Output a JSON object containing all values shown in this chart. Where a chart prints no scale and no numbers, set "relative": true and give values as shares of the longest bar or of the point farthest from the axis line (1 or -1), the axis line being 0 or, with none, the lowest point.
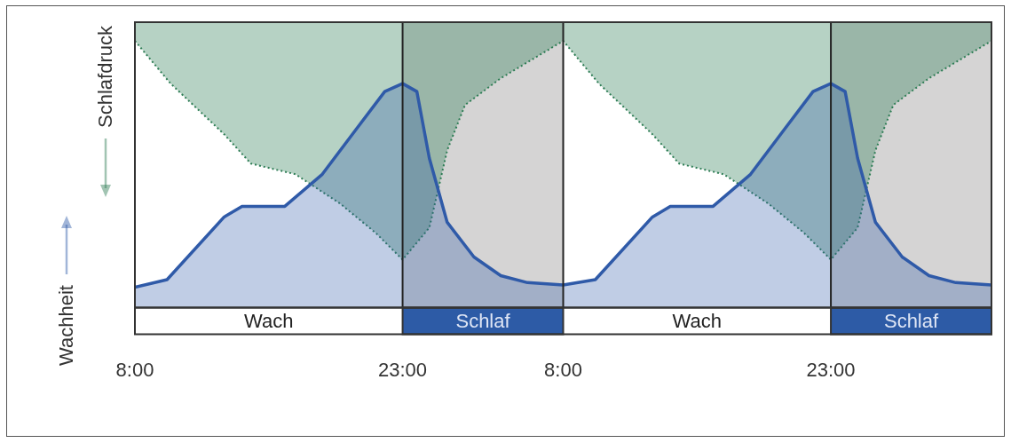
{
  "chart_data": {
    "type": "area",
    "relative": true,
    "legend": "left",
    "xlim": [
      "--01-01T08:00",
      "--01-03T08:00"
    ],
    "xticks": [
      {
        "value": "--01-01T08:00",
        "label": "8:00"
      },
      {
        "value": "--01-01T23:00",
        "label": "23:00"
      },
      {
        "value": "--01-02T08:00",
        "label": "8:00"
      },
      {
        "value": "--01-02T23:00",
        "label": "23:00"
      }
    ],
    "series": [
      {
        "name": "Wachheit",
        "color": "#2f5aa8",
        "line_style": "solid",
        "x": [
          "--01-01T08:00",
          "--01-01T09:48",
          "--01-01T13:00",
          "--01-01T14:00",
          "--01-01T16:24",
          "--01-01T18:30",
          "--01-01T20:18",
          "--01-01T22:00",
          "--01-01T23:00",
          "--01-01T23:48",
          "--01-02T00:30",
          "--01-02T01:30",
          "--01-02T03:00",
          "--01-02T04:30",
          "--01-02T06:00",
          "--01-02T08:00",
          "--01-02T09:48",
          "--01-02T13:00",
          "--01-02T14:00",
          "--01-02T16:24",
          "--01-02T18:30",
          "--01-02T20:18",
          "--01-02T22:00",
          "--01-02T23:00",
          "--01-02T23:48",
          "--01-03T00:30",
          "--01-03T01:30",
          "--01-03T03:00",
          "--01-03T04:30",
          "--01-03T06:00",
          "--01-03T08:00"
        ],
        "values": [
          0.077,
          0.105,
          0.34,
          0.38,
          0.38,
          0.5,
          0.66,
          0.81,
          0.84,
          0.81,
          0.56,
          0.32,
          0.19,
          0.12,
          0.094,
          0.085,
          0.105,
          0.34,
          0.38,
          0.38,
          0.5,
          0.66,
          0.81,
          0.84,
          0.81,
          0.56,
          0.32,
          0.19,
          0.12,
          0.094,
          0.085
        ]
      },
      {
        "name": "Schlafdruck",
        "color": "#2e7d55",
        "line_style": "dotted",
        "x": [
          "--01-01T08:00",
          "--01-01T10:00",
          "--01-01T13:00",
          "--01-01T14:30",
          "--01-01T17:00",
          "--01-01T19:30",
          "--01-01T21:30",
          "--01-01T23:00",
          "--01-02T00:30",
          "--01-02T01:30",
          "--01-02T02:30",
          "--01-02T04:30",
          "--01-02T08:00",
          "--01-02T10:00",
          "--01-02T13:00",
          "--01-02T14:30",
          "--01-02T17:00",
          "--01-02T19:30",
          "--01-02T21:30",
          "--01-02T23:00",
          "--01-03T00:30",
          "--01-03T01:30",
          "--01-03T02:30",
          "--01-03T04:30",
          "--01-03T08:00"
        ],
        "values": [
          1,
          0.84,
          0.65,
          0.54,
          0.5,
          0.39,
          0.28,
          0.18,
          0.3,
          0.59,
          0.76,
          0.86,
          1,
          0.84,
          0.65,
          0.54,
          0.5,
          0.39,
          0.28,
          0.18,
          0.3,
          0.59,
          0.76,
          0.86,
          1
        ]
      }
    ],
    "bands": [
      {
        "axis": "x",
        "from": "--01-01T23:00",
        "to": "--01-02T08:00",
        "label": "Schlaf",
        "color": "#d5d4d4"
      },
      {
        "axis": "x",
        "from": "--01-02T23:00",
        "to": "--01-03T08:00",
        "label": "Schlaf",
        "color": "#d5d4d4"
      }
    ],
    "annotations": [
      "Wach",
      "Wach"
    ],
    "ref_lines": [
      {
        "axis": "x",
        "value": "--01-01T23:00",
        "color": "#222222"
      },
      {
        "axis": "x",
        "value": "--01-02T08:00",
        "color": "#222222"
      },
      {
        "axis": "x",
        "value": "--01-02T23:00",
        "color": "#222222"
      }
    ]
  }
}
